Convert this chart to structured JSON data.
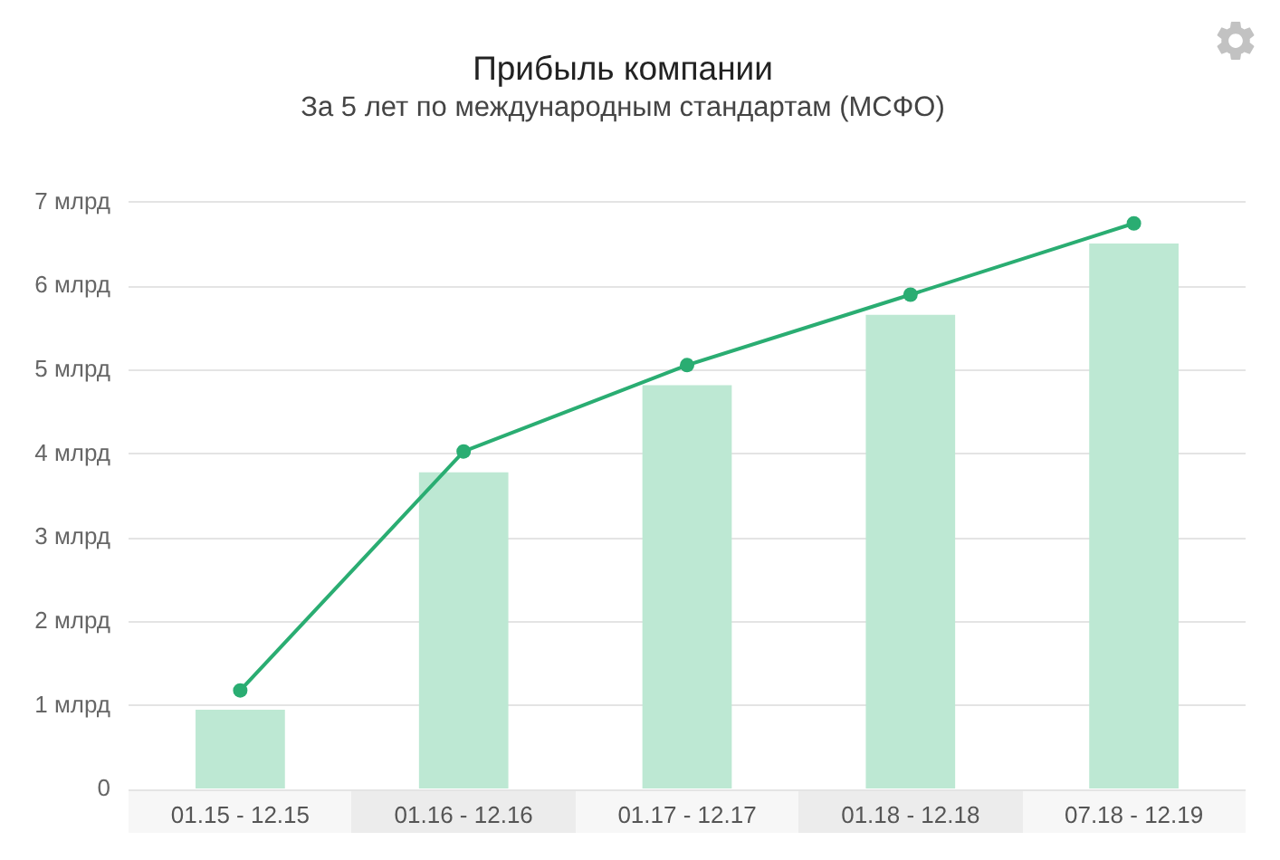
{
  "chart_data": {
    "type": "bar",
    "title": "Прибыль компании",
    "subtitle": "За 5 лет по международным стандартам (МСФО)",
    "categories": [
      "01.15 - 12.15",
      "01.16 - 12.16",
      "01.17 - 12.17",
      "01.18 - 12.18",
      "07.18 - 12.19"
    ],
    "series": [
      {
        "color": "#bde8d3",
        "values": [
          0.95,
          3.78,
          4.82,
          5.66,
          6.51
        ]
      },
      {
        "type": "line",
        "color": "#2aad72",
        "values": [
          1.18,
          4.03,
          5.06,
          5.9,
          6.75
        ]
      }
    ],
    "ylim": [
      0,
      7
    ],
    "yticks": [
      0,
      {
        "value": 1,
        "label": "1 млрд"
      },
      {
        "value": 2,
        "label": "2 млрд"
      },
      {
        "value": 3,
        "label": "3 млрд"
      },
      {
        "value": 4,
        "label": "4 млрд"
      },
      {
        "value": 5,
        "label": "5 млрд"
      },
      {
        "value": 6,
        "label": "6 млрд"
      },
      {
        "value": 7,
        "label": "7 млрд"
      }
    ],
    "grid": "y",
    "marker": "circle"
  }
}
